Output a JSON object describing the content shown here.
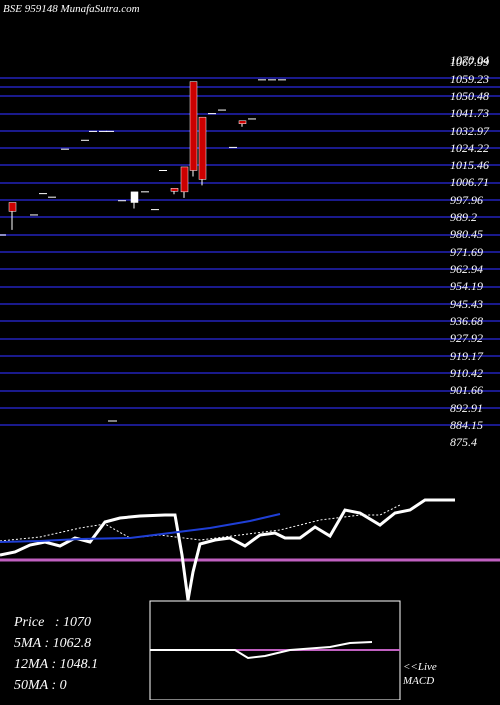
{
  "title": "BSE 959148  MunafaSutra.com",
  "stats": [
    {
      "label": "Price",
      "value": "1070"
    },
    {
      "label": "5MA",
      "value": "1062.8"
    },
    {
      "label": "12MA",
      "value": "1048.1"
    },
    {
      "label": "50MA",
      "value": "0"
    }
  ],
  "macd_label_1": "<<Live",
  "macd_label_2": "MACD",
  "colors": {
    "background": "#000000",
    "grid": "#1a1a8c",
    "candle_down": "#cc0000",
    "candle_up": "#ffffff",
    "indicator_line": "#ffffff",
    "ma_line": "#1f3fd6",
    "zero_line": "#c060c0"
  },
  "chart_data": {
    "type": "candlestick",
    "y_ticks": [
      "1070.04",
      "1067.99",
      "1059.23",
      "1050.48",
      "1041.73",
      "1032.97",
      "1024.22",
      "1015.46",
      "1006.71",
      "997.96",
      "989.2",
      "980.45",
      "971.69",
      "962.94",
      "954.19",
      "945.43",
      "936.68",
      "927.92",
      "919.17",
      "910.42",
      "901.66",
      "892.91",
      "884.15",
      "875.4"
    ],
    "ylim": [
      875.4,
      1070.04
    ],
    "grid": true,
    "candles": [
      {
        "open": 995,
        "high": 1000,
        "low": 988,
        "close": 1000,
        "color": "down"
      },
      {
        "open": 993,
        "high": 993,
        "low": 993,
        "close": 993,
        "color": "flat"
      },
      {
        "open": 1005,
        "high": 1005,
        "low": 1005,
        "close": 1005,
        "color": "flat"
      },
      {
        "open": 1003,
        "high": 1003,
        "low": 1003,
        "close": 1003,
        "color": "flat"
      },
      {
        "open": 1030,
        "high": 1030,
        "low": 1030,
        "close": 1030,
        "color": "flat"
      },
      {
        "open": 1035,
        "high": 1035,
        "low": 1035,
        "close": 1035,
        "color": "flat"
      },
      {
        "open": 1040,
        "high": 1040,
        "low": 1040,
        "close": 1040,
        "color": "flat"
      },
      {
        "open": 1040,
        "high": 1040,
        "low": 1040,
        "close": 1040,
        "color": "flat"
      },
      {
        "open": 1040,
        "high": 1040,
        "low": 1040,
        "close": 1040,
        "color": "flat"
      },
      {
        "open": 1001,
        "high": 1001,
        "low": 1001,
        "close": 1001,
        "color": "flat"
      },
      {
        "open": 1000,
        "high": 1006,
        "low": 1000,
        "close": 1006,
        "color": "up"
      },
      {
        "open": 1006,
        "high": 1006,
        "low": 1006,
        "close": 1006,
        "color": "flat"
      },
      {
        "open": 996,
        "high": 996,
        "low": 996,
        "close": 996,
        "color": "flat"
      },
      {
        "open": 1018,
        "high": 1018,
        "low": 1018,
        "close": 1018,
        "color": "flat"
      },
      {
        "open": 1008,
        "high": 1008,
        "low": 1008,
        "close": 1008,
        "color": "down"
      },
      {
        "open": 1020,
        "high": 1020,
        "low": 1006,
        "close": 1006,
        "color": "down"
      },
      {
        "open": 1068,
        "high": 1068,
        "low": 1018,
        "close": 1018,
        "color": "down"
      },
      {
        "open": 1048,
        "high": 1048,
        "low": 1013,
        "close": 1013,
        "color": "down"
      },
      {
        "open": 1050,
        "high": 1050,
        "low": 1050,
        "close": 1050,
        "color": "flat"
      },
      {
        "open": 1052,
        "high": 1052,
        "low": 1052,
        "close": 1052,
        "color": "flat"
      },
      {
        "open": 1046,
        "high": 1046,
        "low": 1046,
        "close": 1046,
        "color": "down"
      },
      {
        "open": 1031,
        "high": 1031,
        "low": 1031,
        "close": 1031,
        "color": "flat"
      },
      {
        "open": 1047,
        "high": 1047,
        "low": 1047,
        "close": 1047,
        "color": "flat"
      },
      {
        "open": 1069,
        "high": 1069,
        "low": 1069,
        "close": 1069,
        "color": "flat"
      },
      {
        "open": 1069,
        "high": 1069,
        "low": 1069,
        "close": 1069,
        "color": "flat"
      },
      {
        "open": 1069,
        "high": 1069,
        "low": 1069,
        "close": 1069,
        "color": "flat"
      }
    ]
  }
}
